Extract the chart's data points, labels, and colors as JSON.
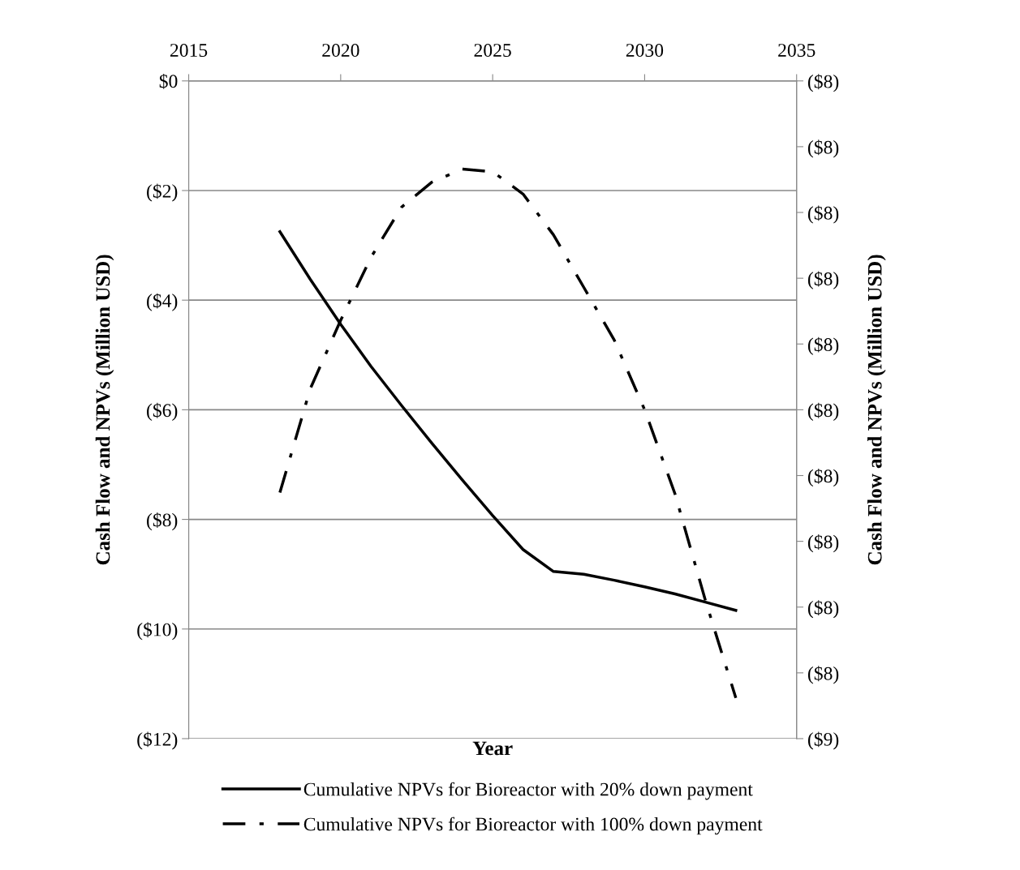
{
  "chart_data": {
    "type": "line",
    "xlabel": "Year",
    "ylabel": "Cash Flow and NPVs (Million USD)",
    "y2label": "Cash Flow and NPVs (Million USD)",
    "x": [
      2018,
      2019,
      2020,
      2021,
      2022,
      2023,
      2024,
      2025,
      2026,
      2027,
      2028,
      2029,
      2030,
      2031,
      2032,
      2033
    ],
    "series": [
      {
        "name": "Cumulative NPVs for Bioreactor with 20% down payment",
        "color": "#000000",
        "line_style": "solid",
        "values": [
          -2.75,
          -3.62,
          -4.44,
          -5.21,
          -5.92,
          -6.61,
          -7.28,
          -7.93,
          -8.55,
          -8.95,
          -9.0,
          -9.11,
          -9.23,
          -9.36,
          -9.51,
          -9.66
        ]
      },
      {
        "name": "Cumulative NPVs for Bioreactor with 100% down payment",
        "color": "#000000",
        "line_style": "dashdot",
        "axis": "y2",
        "values": [
          -8.313,
          -8.234,
          -8.182,
          -8.134,
          -8.096,
          -8.077,
          -8.067,
          -8.069,
          -8.086,
          -8.117,
          -8.157,
          -8.197,
          -8.25,
          -8.314,
          -8.395,
          -8.469
        ]
      }
    ],
    "xlim": [
      2015,
      2035
    ],
    "xticks": [
      2015,
      2020,
      2025,
      2030,
      2035
    ],
    "ylim": [
      -12,
      0
    ],
    "yticks": [
      {
        "value": 0,
        "label": "$0"
      },
      {
        "value": -2,
        "label": "($2)"
      },
      {
        "value": -4,
        "label": "($4)"
      },
      {
        "value": -6,
        "label": "($6)"
      },
      {
        "value": -8,
        "label": "($8)"
      },
      {
        "value": -10,
        "label": "($10)"
      },
      {
        "value": -12,
        "label": "($12)"
      }
    ],
    "y2lim": [
      -8.5,
      -8.0
    ],
    "y2ticks": [
      {
        "value": -8.0,
        "label": "($8)"
      },
      {
        "value": -8.05,
        "label": "($8)"
      },
      {
        "value": -8.1,
        "label": "($8)"
      },
      {
        "value": -8.15,
        "label": "($8)"
      },
      {
        "value": -8.2,
        "label": "($8)"
      },
      {
        "value": -8.25,
        "label": "($8)"
      },
      {
        "value": -8.3,
        "label": "($8)"
      },
      {
        "value": -8.35,
        "label": "($8)"
      },
      {
        "value": -8.4,
        "label": "($8)"
      },
      {
        "value": -8.45,
        "label": "($8)"
      },
      {
        "value": -8.5,
        "label": "($9)"
      }
    ],
    "grid": "y",
    "legend": "bottom",
    "marker": "none"
  }
}
